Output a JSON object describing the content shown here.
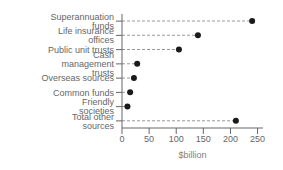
{
  "chart_data": {
    "type": "lollipop",
    "orientation": "horizontal",
    "categories": [
      "Superannuation funds",
      "Life insurance offices",
      "Public unit trusts",
      "Cash management trusts",
      "Overseas sources",
      "Common funds",
      "Friendly societies",
      "Total other sources"
    ],
    "values": [
      240,
      140,
      105,
      28,
      22,
      15,
      10,
      210
    ],
    "xlabel": "$billion",
    "xlim": [
      0,
      260
    ],
    "xticks": [
      0,
      50,
      100,
      150,
      200,
      250
    ],
    "color": "#1a1a1a",
    "marker": "circle",
    "line_style": "dashed",
    "grid": false
  }
}
